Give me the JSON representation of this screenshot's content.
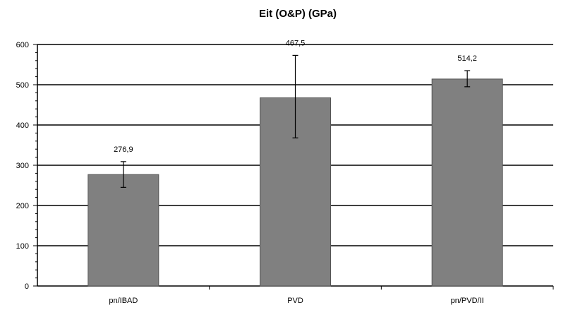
{
  "chart_data": {
    "type": "bar",
    "title": "Eit (O&P) (GPa)",
    "xlabel": "",
    "ylabel": "",
    "categories": [
      "pn/IBAD",
      "PVD",
      "pn/PVD/II"
    ],
    "values": [
      276.9,
      467.5,
      514.2
    ],
    "value_labels": [
      "276,9",
      "467,5",
      "514,2"
    ],
    "error_low": [
      245,
      368,
      495
    ],
    "error_high": [
      309,
      573,
      535
    ],
    "ylim": [
      0,
      600
    ],
    "yticks": [
      "0",
      "100",
      "200",
      "300",
      "400",
      "500",
      "600"
    ],
    "ytick_values": [
      0,
      100,
      200,
      300,
      400,
      500,
      600
    ],
    "grid": true,
    "legend": "none",
    "bar_color": "#808080",
    "grid_color": "#000000"
  }
}
